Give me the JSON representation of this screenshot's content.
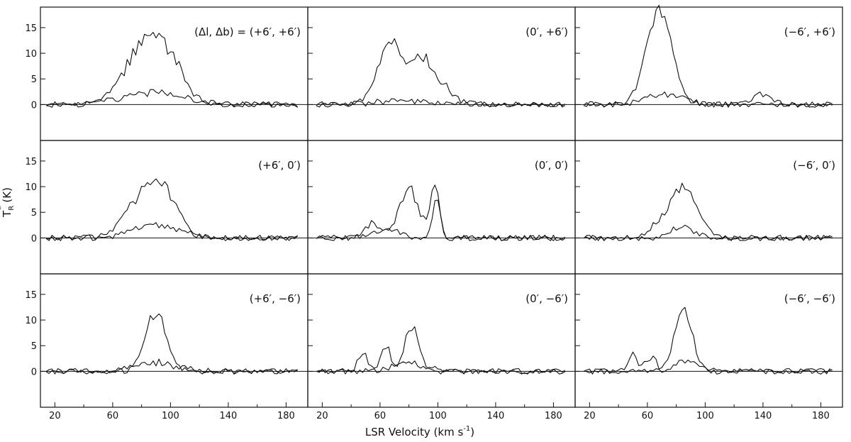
{
  "chart_data": {
    "type": "line",
    "xlabel": "LSR Velocity (km s",
    "xlabel_sup": "-1",
    "xlabel_end": ")",
    "ylabel": "T",
    "ylabel_sup": "*",
    "ylabel_sub": "R",
    "ylabel_end": " (K)",
    "xlim": [
      10,
      195
    ],
    "ylim": [
      -7,
      19
    ],
    "x_ticks": [
      20,
      60,
      100,
      140,
      180
    ],
    "x_minor_ticks": [
      40,
      80,
      120,
      160
    ],
    "y_ticks": [
      0,
      5,
      10,
      15
    ],
    "grid": false,
    "legend": "none",
    "velocity_step": 2,
    "noise": 0.55,
    "panels": [
      {
        "label": "(Δl, Δb) = (+6′, +6′)",
        "row": 0,
        "col": 0,
        "x_range": [
          14,
          188
        ],
        "seed": 11,
        "series": [
          {
            "peaks": [
              [
                80,
                8.7,
                14
              ],
              [
                96,
                7.8,
                12
              ]
            ],
            "ripple": 1.5
          },
          {
            "peaks": [
              [
                88,
                2.6,
                20
              ]
            ],
            "ripple": 0.6
          }
        ]
      },
      {
        "label": "(0′, +6′)",
        "row": 0,
        "col": 1,
        "x_range": [
          16,
          188
        ],
        "seed": 23,
        "series": [
          {
            "peaks": [
              [
                68,
                11.5,
                7
              ],
              [
                88,
                9.2,
                8
              ],
              [
                58,
                3,
                6
              ],
              [
                105,
                2.5,
                8
              ]
            ],
            "ripple": 0.8
          },
          {
            "peaks": [
              [
                75,
                1.0,
                16
              ]
            ],
            "ripple": 0.3
          }
        ]
      },
      {
        "label": "(−6′, +6′)",
        "row": 0,
        "col": 2,
        "x_range": [
          16,
          188
        ],
        "seed": 37,
        "series": [
          {
            "peaks": [
              [
                70,
                16.5,
                8
              ],
              [
                60,
                4,
                7
              ],
              [
                140,
                2.2,
                6
              ]
            ],
            "ripple": 1.0
          },
          {
            "peaks": [
              [
                72,
                2.0,
                12
              ]
            ],
            "ripple": 0.3
          }
        ]
      },
      {
        "label": "(+6′, 0′)",
        "row": 1,
        "col": 0,
        "x_range": [
          14,
          188
        ],
        "seed": 41,
        "series": [
          {
            "peaks": [
              [
                80,
                7.5,
                12
              ],
              [
                96,
                7.0,
                10
              ]
            ],
            "ripple": 1.0
          },
          {
            "peaks": [
              [
                90,
                2.8,
                15
              ]
            ],
            "ripple": 0.5
          }
        ]
      },
      {
        "label": "(0′, 0′)",
        "row": 1,
        "col": 1,
        "x_range": [
          16,
          188
        ],
        "seed": 53,
        "series": [
          {
            "peaks": [
              [
                80,
                9.5,
                7
              ],
              [
                98,
                10.0,
                3
              ],
              [
                55,
                3.0,
                5
              ]
            ],
            "ripple": 0.8
          },
          {
            "peaks": [
              [
                99,
                8.0,
                2.5
              ],
              [
                65,
                1.5,
                8
              ]
            ],
            "ripple": 0.3
          }
        ]
      },
      {
        "label": "(−6′, 0′)",
        "row": 1,
        "col": 2,
        "x_range": [
          16,
          188
        ],
        "seed": 67,
        "series": [
          {
            "peaks": [
              [
                86,
                9.5,
                9
              ],
              [
                70,
                2.5,
                8
              ]
            ],
            "ripple": 0.7
          },
          {
            "peaks": [
              [
                84,
                2.2,
                8
              ]
            ],
            "ripple": 0.3
          }
        ]
      },
      {
        "label": "(+6′, −6′)",
        "row": 2,
        "col": 0,
        "x_range": [
          14,
          188
        ],
        "seed": 71,
        "series": [
          {
            "peaks": [
              [
                90,
                11.5,
                7
              ]
            ],
            "ripple": 1.5
          },
          {
            "peaks": [
              [
                90,
                1.6,
                14
              ]
            ],
            "ripple": 0.5
          }
        ]
      },
      {
        "label": "(0′, −6′)",
        "row": 2,
        "col": 1,
        "x_range": [
          16,
          188
        ],
        "seed": 83,
        "series": [
          {
            "peaks": [
              [
                82,
                8.7,
                5
              ],
              [
                64,
                5.0,
                3
              ],
              [
                48,
                3.5,
                3
              ]
            ],
            "ripple": 0.8
          },
          {
            "peaks": [
              [
                80,
                1.5,
                12
              ]
            ],
            "ripple": 0.3
          }
        ]
      },
      {
        "label": "(−6′, −6′)",
        "row": 2,
        "col": 2,
        "x_range": [
          16,
          188
        ],
        "seed": 97,
        "series": [
          {
            "peaks": [
              [
                85,
                12.0,
                6
              ],
              [
                50,
                4.0,
                3
              ],
              [
                62,
                2.5,
                4
              ]
            ],
            "ripple": 0.9
          },
          {
            "peaks": [
              [
                88,
                2.2,
                8
              ]
            ],
            "ripple": 0.4
          }
        ]
      }
    ]
  }
}
